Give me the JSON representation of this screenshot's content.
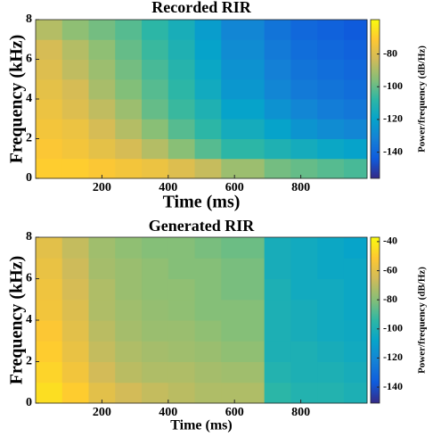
{
  "chart_data": [
    {
      "type": "heatmap",
      "title": "Recorded RIR",
      "xlabel": "Time (ms)",
      "ylabel": "Frequency (kHz)",
      "colorbar_label": "Power/frequency (dB/Hz)",
      "xlim": [
        0,
        1000
      ],
      "xticks": [
        200,
        400,
        600,
        800
      ],
      "ylim": [
        0,
        8
      ],
      "yticks": [
        0,
        2,
        4,
        6,
        8
      ],
      "clim": [
        -156,
        -59
      ],
      "cticks": [
        -80,
        -100,
        -120,
        -140
      ],
      "colormap": [
        "#352a87",
        "#0f5cdd",
        "#1481d6",
        "#06a4ca",
        "#2eb7a4",
        "#87bf77",
        "#d1bb59",
        "#fec832",
        "#f9fb0e"
      ],
      "xbins": [
        0,
        80,
        160,
        240,
        320,
        400,
        480,
        560,
        690,
        770,
        850,
        930,
        1000
      ],
      "ybins": [
        0,
        1,
        2,
        3,
        4,
        5,
        6,
        7,
        8
      ],
      "z": [
        [
          -70,
          -70,
          -72,
          -74,
          -76,
          -80,
          -85,
          -92,
          -98,
          -100,
          -102,
          -104
        ],
        [
          -72,
          -74,
          -78,
          -82,
          -88,
          -95,
          -102,
          -108,
          -112,
          -115,
          -118,
          -120
        ],
        [
          -74,
          -76,
          -82,
          -88,
          -95,
          -102,
          -108,
          -115,
          -120,
          -125,
          -128,
          -130
        ],
        [
          -76,
          -80,
          -86,
          -92,
          -100,
          -106,
          -112,
          -120,
          -126,
          -130,
          -133,
          -135
        ],
        [
          -78,
          -82,
          -90,
          -96,
          -102,
          -108,
          -116,
          -124,
          -130,
          -134,
          -136,
          -138
        ],
        [
          -80,
          -86,
          -92,
          -98,
          -104,
          -110,
          -118,
          -126,
          -132,
          -136,
          -138,
          -140
        ],
        [
          -82,
          -88,
          -94,
          -100,
          -106,
          -112,
          -120,
          -128,
          -134,
          -138,
          -140,
          -142
        ],
        [
          -88,
          -94,
          -98,
          -102,
          -108,
          -114,
          -122,
          -130,
          -136,
          -140,
          -142,
          -144
        ]
      ]
    },
    {
      "type": "heatmap",
      "title": "Generated RIR",
      "xlabel": "Time (ms)",
      "ylabel": "Frequency (kHz)",
      "colorbar_label": "Power/frequency (dB/Hz)",
      "xlim": [
        0,
        1000
      ],
      "xticks": [
        200,
        400,
        600,
        800
      ],
      "ylim": [
        0,
        8
      ],
      "yticks": [
        0,
        2,
        4,
        6,
        8
      ],
      "clim": [
        -151,
        -37
      ],
      "cticks": [
        -40,
        -60,
        -80,
        -100,
        -120,
        -140
      ],
      "colormap": [
        "#352a87",
        "#0f5cdd",
        "#1481d6",
        "#06a4ca",
        "#2eb7a4",
        "#87bf77",
        "#d1bb59",
        "#fec832",
        "#f9fb0e"
      ],
      "xbins": [
        0,
        80,
        160,
        240,
        320,
        400,
        480,
        560,
        690,
        770,
        850,
        930,
        1000
      ],
      "ybins": [
        0,
        1,
        2,
        3,
        4,
        5,
        6,
        7,
        8
      ],
      "z": [
        [
          -45,
          -50,
          -60,
          -65,
          -68,
          -70,
          -72,
          -72,
          -95,
          -98,
          -98,
          -100
        ],
        [
          -48,
          -55,
          -65,
          -70,
          -72,
          -72,
          -74,
          -75,
          -98,
          -100,
          -100,
          -102
        ],
        [
          -50,
          -58,
          -68,
          -72,
          -74,
          -75,
          -76,
          -78,
          -100,
          -100,
          -102,
          -104
        ],
        [
          -52,
          -60,
          -70,
          -74,
          -76,
          -76,
          -78,
          -80,
          -100,
          -102,
          -104,
          -105
        ],
        [
          -55,
          -62,
          -72,
          -75,
          -77,
          -78,
          -80,
          -80,
          -100,
          -102,
          -104,
          -106
        ],
        [
          -56,
          -64,
          -72,
          -76,
          -78,
          -78,
          -80,
          -82,
          -100,
          -104,
          -104,
          -106
        ],
        [
          -58,
          -66,
          -74,
          -76,
          -78,
          -80,
          -80,
          -82,
          -102,
          -104,
          -106,
          -106
        ],
        [
          -60,
          -68,
          -75,
          -78,
          -80,
          -80,
          -82,
          -84,
          -102,
          -104,
          -106,
          -108
        ]
      ]
    }
  ]
}
